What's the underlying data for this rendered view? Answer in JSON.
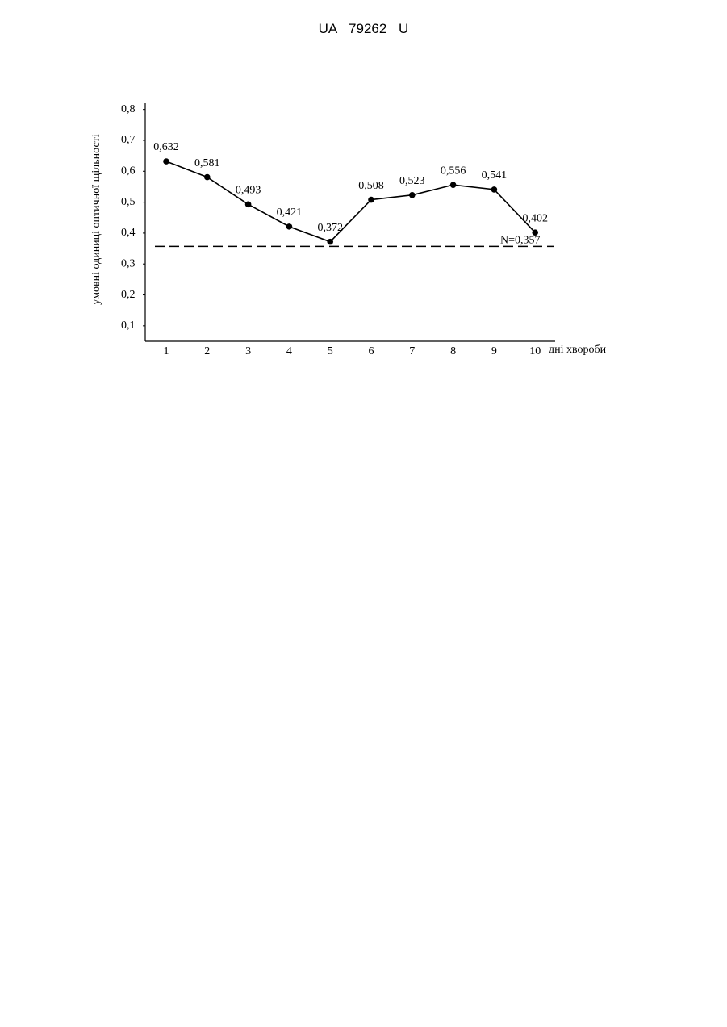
{
  "header": "UA 79262 U",
  "chart_data": {
    "type": "line",
    "y_label": "умовні одиниці оптичної щільності",
    "x_label": "дні хвороби",
    "categories": [
      "1",
      "2",
      "3",
      "4",
      "5",
      "6",
      "7",
      "8",
      "9",
      "10"
    ],
    "series": [
      {
        "color": "#000000",
        "values": [
          0.632,
          0.581,
          0.493,
          0.421,
          0.372,
          0.508,
          0.523,
          0.556,
          0.541,
          0.402
        ],
        "value_labels": [
          "0,632",
          "0,581",
          "0,493",
          "0,421",
          "0,372",
          "0,508",
          "0,523",
          "0,556",
          "0,541",
          "0,402"
        ]
      }
    ],
    "ylim": [
      0.05,
      0.82
    ],
    "yticks": [
      {
        "value": 0.1,
        "label": "0,1"
      },
      {
        "value": 0.2,
        "label": "0,2"
      },
      {
        "value": 0.3,
        "label": "0,3"
      },
      {
        "value": 0.4,
        "label": "0,4"
      },
      {
        "value": 0.5,
        "label": "0,5"
      },
      {
        "value": 0.6,
        "label": "0,6"
      },
      {
        "value": 0.7,
        "label": "0,7"
      },
      {
        "value": 0.8,
        "label": "0,8"
      }
    ],
    "reference_line": {
      "value": 0.357,
      "label": "N=0,357"
    }
  }
}
